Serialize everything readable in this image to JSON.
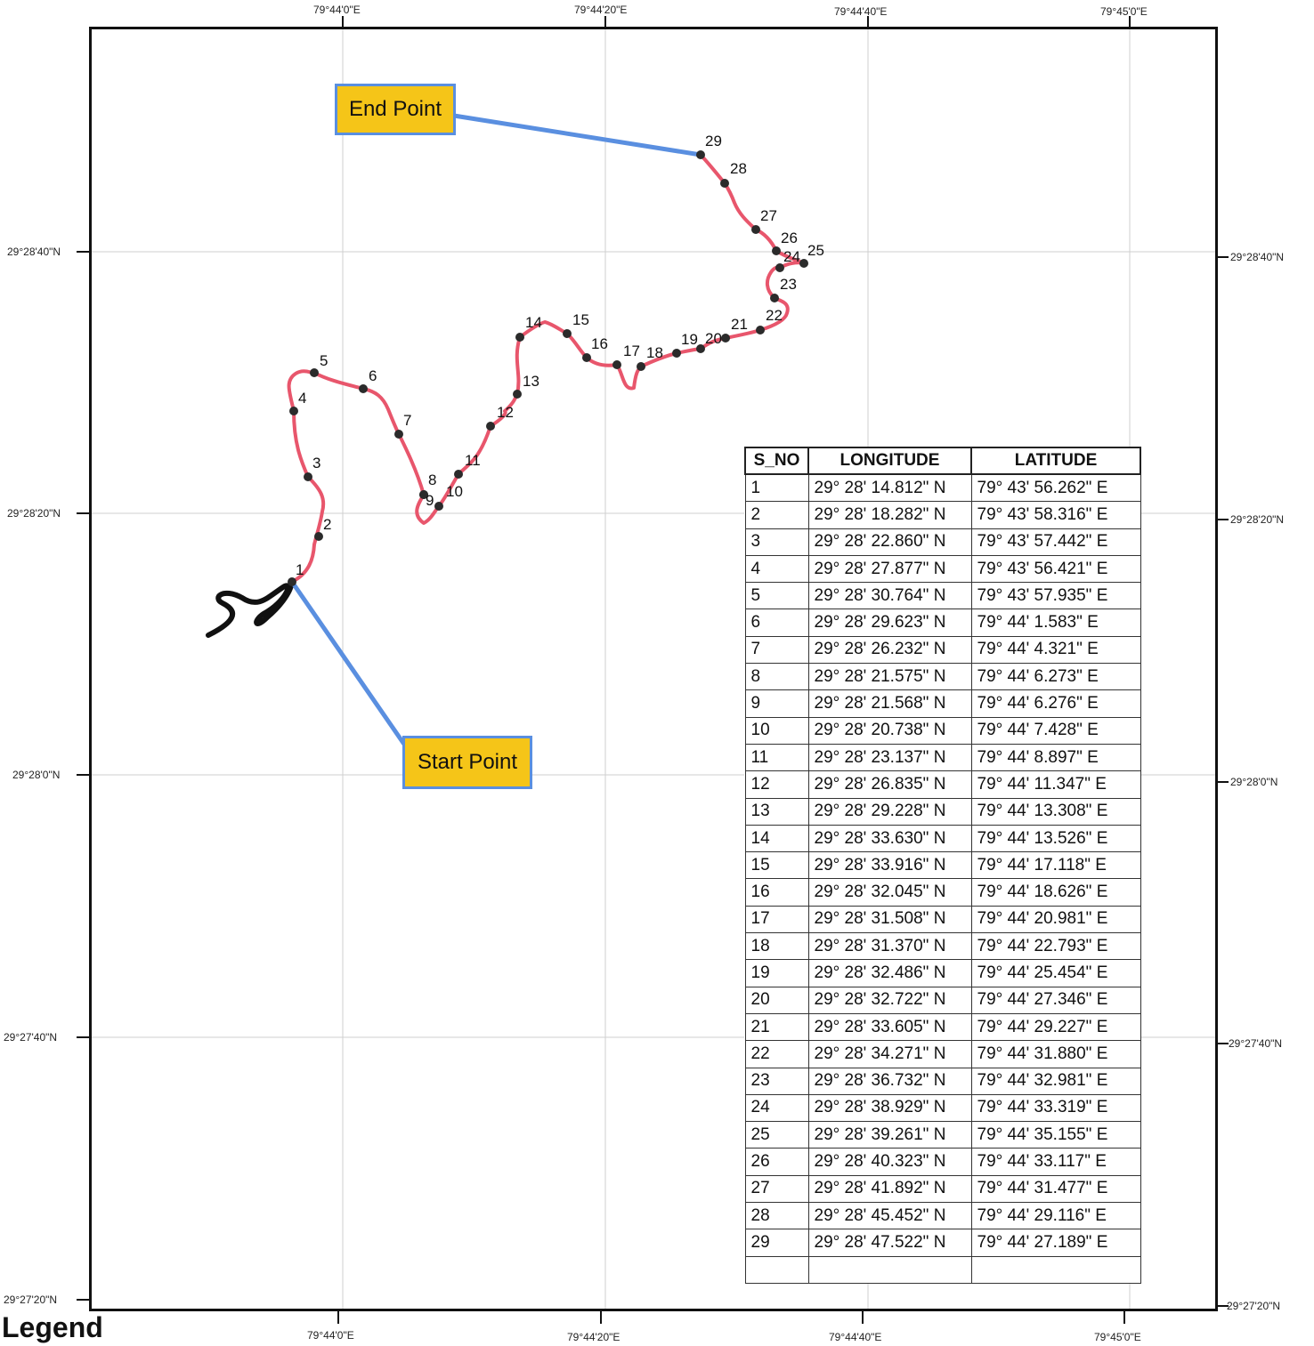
{
  "map": {
    "legend_title": "Legend",
    "top_axis_labels": [
      "79°44'0\"E",
      "79°44'20\"E",
      "79°44'40\"E",
      "79°45'0\"E"
    ],
    "bottom_axis_labels": [
      "79°44'0\"E",
      "79°44'20\"E",
      "79°44'40\"E",
      "79°45'0\"E"
    ],
    "left_axis_labels": [
      "29°28'40\"N",
      "29°28'20\"N",
      "29°28'0\"N",
      "29°27'40\"N",
      "29°27'20\"N"
    ],
    "right_axis_labels": [
      "29°28'40\"N",
      "29°28'20\"N",
      "29°28'0\"N",
      "29°27'40\"N",
      "29°27'20\"N"
    ],
    "start_label": "Start Point",
    "end_label": "End Point",
    "route_color": "#e8566c",
    "callout_color": "#f5c518",
    "leader_color": "#5a8fe0",
    "point_labels": [
      "1",
      "2",
      "3",
      "4",
      "5",
      "6",
      "7",
      "8",
      "9",
      "10",
      "11",
      "12",
      "13",
      "14",
      "15",
      "16",
      "17",
      "18",
      "19",
      "20",
      "21",
      "22",
      "23",
      "24",
      "25",
      "26",
      "27",
      "28",
      "29"
    ]
  },
  "table": {
    "headers": [
      "S_NO",
      "LONGITUDE",
      "LATITUDE"
    ],
    "rows": [
      [
        "1",
        "29° 28' 14.812\" N",
        "79° 43' 56.262\" E"
      ],
      [
        "2",
        "29° 28' 18.282\" N",
        "79° 43' 58.316\" E"
      ],
      [
        "3",
        "29° 28' 22.860\" N",
        "79° 43' 57.442\" E"
      ],
      [
        "4",
        "29° 28' 27.877\" N",
        "79° 43' 56.421\" E"
      ],
      [
        "5",
        "29° 28' 30.764\" N",
        "79° 43' 57.935\" E"
      ],
      [
        "6",
        "29° 28' 29.623\" N",
        "79° 44' 1.583\" E"
      ],
      [
        "7",
        "29° 28' 26.232\" N",
        "79° 44' 4.321\" E"
      ],
      [
        "8",
        "29° 28' 21.575\" N",
        "79° 44' 6.273\" E"
      ],
      [
        "9",
        "29° 28' 21.568\" N",
        "79° 44' 6.276\" E"
      ],
      [
        "10",
        "29° 28' 20.738\" N",
        "79° 44' 7.428\" E"
      ],
      [
        "11",
        "29° 28' 23.137\" N",
        "79° 44' 8.897\" E"
      ],
      [
        "12",
        "29° 28' 26.835\" N",
        "79° 44' 11.347\" E"
      ],
      [
        "13",
        "29° 28' 29.228\" N",
        "79° 44' 13.308\" E"
      ],
      [
        "14",
        "29° 28' 33.630\" N",
        "79° 44' 13.526\" E"
      ],
      [
        "15",
        "29° 28' 33.916\" N",
        "79° 44' 17.118\" E"
      ],
      [
        "16",
        "29° 28' 32.045\" N",
        "79° 44' 18.626\" E"
      ],
      [
        "17",
        "29° 28' 31.508\" N",
        "79° 44' 20.981\" E"
      ],
      [
        "18",
        "29° 28' 31.370\" N",
        "79° 44' 22.793\" E"
      ],
      [
        "19",
        "29° 28' 32.486\" N",
        "79° 44' 25.454\" E"
      ],
      [
        "20",
        "29° 28' 32.722\" N",
        "79° 44' 27.346\" E"
      ],
      [
        "21",
        "29° 28' 33.605\" N",
        "79° 44' 29.227\" E"
      ],
      [
        "22",
        "29° 28' 34.271\" N",
        "79° 44' 31.880\" E"
      ],
      [
        "23",
        "29° 28' 36.732\" N",
        "79° 44' 32.981\" E"
      ],
      [
        "24",
        "29° 28' 38.929\" N",
        "79° 44' 33.319\" E"
      ],
      [
        "25",
        "29° 28' 39.261\" N",
        "79° 44' 35.155\" E"
      ],
      [
        "26",
        "29° 28' 40.323\" N",
        "79° 44' 33.117\" E"
      ],
      [
        "27",
        "29° 28' 41.892\" N",
        "79° 44' 31.477\" E"
      ],
      [
        "28",
        "29° 28' 45.452\" N",
        "79° 44' 29.116\" E"
      ],
      [
        "29",
        "29° 28' 47.522\" N",
        "79° 44' 27.189\" E"
      ]
    ]
  }
}
